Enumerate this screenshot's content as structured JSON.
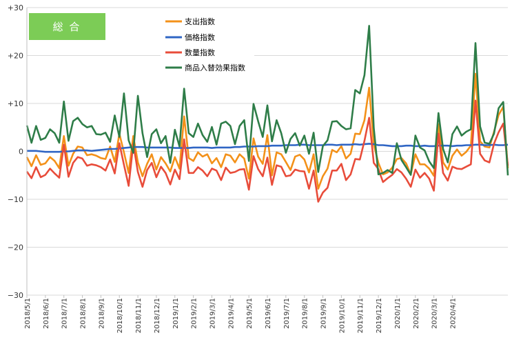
{
  "chart_data": {
    "type": "line",
    "badge": "総 合",
    "ylim": [
      -30,
      30
    ],
    "yticks": [
      30,
      20,
      10,
      0,
      -10,
      -20,
      -30
    ],
    "ytick_labels": [
      "+30",
      "+20",
      "+10",
      "0",
      "−10",
      "−20",
      "−30"
    ],
    "grid": true,
    "legend_position": "top-center",
    "x_labels": [
      "2018/5/1",
      "2018/6/1",
      "2018/7/1",
      "2018/8/1",
      "2018/9/1",
      "2018/10/1",
      "2018/11/1",
      "2018/12/1",
      "2019/1/1",
      "2019/2/1",
      "2019/3/1",
      "2019/4/1",
      "2019/5/1",
      "2019/6/1",
      "2019/7/1",
      "2019/8/1",
      "2019/9/1",
      "2019/10/1",
      "2019/11/1",
      "2019/12/1",
      "2020/1/1",
      "2020/2/1",
      "2020/3/1",
      "2020/4/1"
    ],
    "points_per_period": 4,
    "series": [
      {
        "name": "支出指数",
        "color": "#f39119",
        "values": [
          -1.2,
          -3.1,
          -0.8,
          -2.8,
          -2.5,
          -1.2,
          -2.0,
          -3.5,
          3.2,
          -3.0,
          -0.5,
          1.0,
          0.8,
          -0.8,
          -0.6,
          -0.9,
          -1.4,
          -1.6,
          1.0,
          -2.2,
          3.7,
          -0.2,
          -4.5,
          3.2,
          -2.3,
          -5.2,
          -2.6,
          -0.6,
          -3.8,
          -1.2,
          -2.5,
          -4.2,
          -1.2,
          -3.6,
          7.3,
          -1.4,
          -2.0,
          -0.2,
          -1.1,
          -0.6,
          -2.5,
          -1.4,
          -3.3,
          -0.6,
          -0.9,
          -2.3,
          -0.6,
          -1.5,
          -5.7,
          2.7,
          -1.1,
          -2.6,
          3.4,
          -5.0,
          -0.2,
          -0.6,
          -2.2,
          -3.9,
          -1.1,
          -0.7,
          -1.7,
          -4.4,
          -0.6,
          -7.8,
          -5.2,
          -3.6,
          0.3,
          -0.2,
          1.1,
          -1.5,
          -0.5,
          3.7,
          3.6,
          6.5,
          13.3,
          1.4,
          -2.4,
          -4.8,
          -4.4,
          -3.4,
          -1.6,
          -1.4,
          -2.5,
          -4.8,
          -0.6,
          -2.7,
          -2.7,
          -3.6,
          -5.1,
          5.7,
          -2.3,
          -3.8,
          -0.9,
          0.4,
          -0.9,
          -0.1,
          1.2,
          16.2,
          2.1,
          1.0,
          0.8,
          4.1,
          7.6,
          9.3,
          -3.5
        ]
      },
      {
        "name": "価格指数",
        "color": "#2f65c4",
        "values": [
          0.1,
          0.1,
          0.1,
          0.0,
          -0.1,
          -0.1,
          -0.1,
          -0.1,
          0.0,
          0.0,
          0.1,
          0.2,
          0.2,
          0.2,
          0.1,
          0.2,
          0.3,
          0.4,
          0.5,
          0.5,
          0.6,
          0.7,
          0.8,
          0.9,
          0.9,
          0.9,
          0.8,
          0.8,
          0.8,
          0.8,
          0.8,
          0.8,
          0.7,
          0.7,
          0.7,
          0.7,
          0.8,
          0.8,
          0.8,
          0.8,
          0.7,
          0.8,
          0.8,
          0.8,
          0.8,
          0.9,
          0.9,
          1.0,
          1.0,
          1.0,
          1.1,
          1.1,
          1.1,
          1.2,
          1.2,
          1.2,
          1.3,
          1.3,
          1.3,
          1.4,
          1.4,
          1.3,
          1.3,
          1.3,
          1.3,
          1.4,
          1.4,
          1.3,
          1.4,
          1.4,
          1.4,
          1.5,
          1.4,
          1.5,
          1.6,
          1.5,
          1.3,
          1.3,
          1.2,
          1.1,
          1.1,
          1.1,
          1.2,
          1.2,
          1.1,
          1.1,
          1.2,
          1.1,
          1.1,
          1.2,
          1.2,
          1.2,
          1.1,
          1.2,
          1.2,
          1.3,
          1.3,
          1.4,
          1.4,
          1.3,
          1.3,
          1.4,
          1.3,
          1.3,
          1.4
        ]
      },
      {
        "name": "数量指数",
        "color": "#e84c3a",
        "values": [
          -4.2,
          -5.6,
          -3.3,
          -5.4,
          -4.9,
          -3.6,
          -4.6,
          -5.5,
          1.4,
          -5.3,
          -2.4,
          -1.2,
          -1.5,
          -3.0,
          -2.7,
          -2.9,
          -3.3,
          -4.0,
          -1.7,
          -4.6,
          1.7,
          -2.8,
          -7.2,
          1.6,
          -4.3,
          -7.4,
          -3.9,
          -2.4,
          -5.4,
          -3.2,
          -4.5,
          -6.9,
          -3.8,
          -5.8,
          2.5,
          -4.5,
          -4.5,
          -3.3,
          -4.0,
          -5.2,
          -3.6,
          -4.0,
          -6.0,
          -3.4,
          -4.5,
          -4.3,
          -3.8,
          -3.7,
          -8.0,
          -1.0,
          -3.7,
          -5.2,
          -1.3,
          -7.0,
          -2.9,
          -3.2,
          -5.2,
          -5.0,
          -3.8,
          -4.1,
          -4.2,
          -7.8,
          -4.0,
          -10.5,
          -8.6,
          -7.6,
          -4.0,
          -4.0,
          -2.6,
          -6.0,
          -4.8,
          -1.6,
          -1.7,
          2.2,
          7.0,
          -2.4,
          -3.7,
          -6.4,
          -5.6,
          -4.9,
          -3.7,
          -4.4,
          -5.7,
          -7.4,
          -3.8,
          -5.5,
          -4.5,
          -5.7,
          -8.2,
          3.7,
          -4.5,
          -6.1,
          -3.2,
          -3.6,
          -3.7,
          -3.2,
          -2.7,
          10.6,
          -0.5,
          -1.9,
          -2.3,
          1.6,
          4.0,
          5.8,
          -3.0
        ]
      },
      {
        "name": "商品入替効果指数",
        "color": "#2e7d48",
        "values": [
          5.4,
          1.8,
          5.3,
          2.4,
          2.8,
          4.6,
          3.8,
          1.8,
          10.4,
          2.2,
          6.3,
          7.0,
          5.7,
          5.0,
          5.3,
          3.6,
          3.5,
          3.9,
          2.0,
          7.5,
          3.0,
          12.1,
          2.3,
          -0.3,
          11.6,
          3.8,
          -1.2,
          3.6,
          4.6,
          1.7,
          3.2,
          -2.4,
          4.5,
          1.0,
          13.1,
          3.8,
          3.0,
          5.8,
          3.4,
          2.0,
          5.1,
          1.4,
          5.8,
          6.2,
          5.3,
          1.5,
          5.3,
          6.5,
          -2.0,
          9.9,
          6.3,
          3.0,
          9.6,
          2.1,
          6.5,
          3.8,
          -0.3,
          2.6,
          3.8,
          1.2,
          3.3,
          -0.5,
          3.9,
          -4.3,
          1.1,
          2.3,
          6.2,
          6.3,
          5.3,
          4.6,
          4.8,
          12.8,
          12.1,
          15.9,
          26.2,
          4.9,
          -4.8,
          -4.5,
          -3.9,
          -4.5,
          1.7,
          -1.8,
          -3.3,
          -4.9,
          3.3,
          0.8,
          0.2,
          -2.1,
          -3.5,
          8.0,
          0.5,
          -2.3,
          3.6,
          5.2,
          3.3,
          4.1,
          4.6,
          22.6,
          5.2,
          1.8,
          1.6,
          3.7,
          9.0,
          10.3,
          -5.0
        ]
      }
    ]
  }
}
